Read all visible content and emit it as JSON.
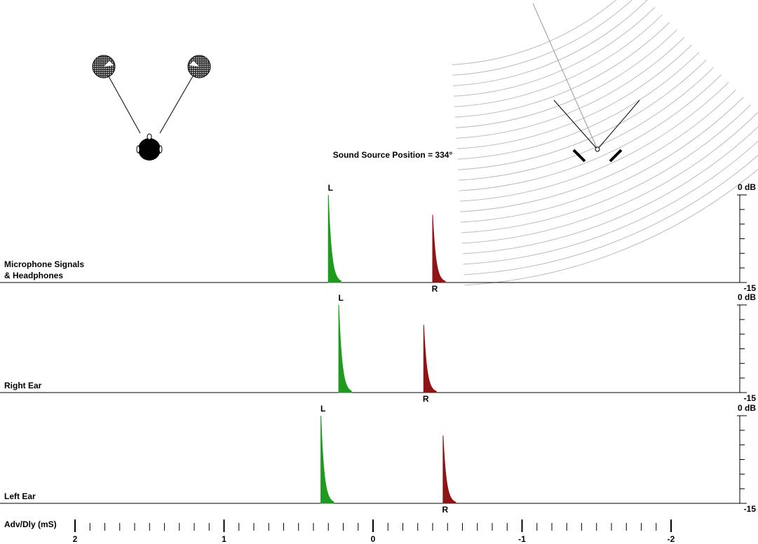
{
  "title": "Sound Source Position = 334°",
  "x_axis": {
    "xlabel": "Adv/Dly (mS)",
    "xlim": [
      2,
      -2
    ],
    "xticks": [
      2,
      1,
      0,
      -1,
      -2
    ]
  },
  "chart_data": [
    {
      "type": "impulse",
      "title_lines": [
        "Microphone Signals",
        "& Headphones"
      ],
      "categories": [
        "L",
        "R"
      ],
      "x": [
        0.3,
        -0.4
      ],
      "values": [
        0,
        -3.4
      ],
      "colors": [
        "#1f9a1f",
        "#8e1515"
      ],
      "ylim": [
        -15,
        0
      ],
      "yticks": [
        {
          "value": 0,
          "label": "0 dB"
        },
        -15
      ]
    },
    {
      "type": "impulse",
      "title_lines": [
        "Right Ear"
      ],
      "categories": [
        "L",
        "R"
      ],
      "x": [
        0.23,
        -0.34
      ],
      "values": [
        0,
        -3.4
      ],
      "colors": [
        "#1f9a1f",
        "#8e1515"
      ],
      "ylim": [
        -15,
        0
      ],
      "yticks": [
        {
          "value": 0,
          "label": "0 dB"
        },
        -15
      ]
    },
    {
      "type": "impulse",
      "title_lines": [
        "Left Ear"
      ],
      "categories": [
        "L",
        "R"
      ],
      "x": [
        0.35,
        -0.47
      ],
      "values": [
        0,
        -3.4
      ],
      "colors": [
        "#1f9a1f",
        "#8e1515"
      ],
      "ylim": [
        -15,
        0
      ],
      "yticks": [
        {
          "value": 0,
          "label": "0 dB"
        },
        -15
      ]
    }
  ]
}
